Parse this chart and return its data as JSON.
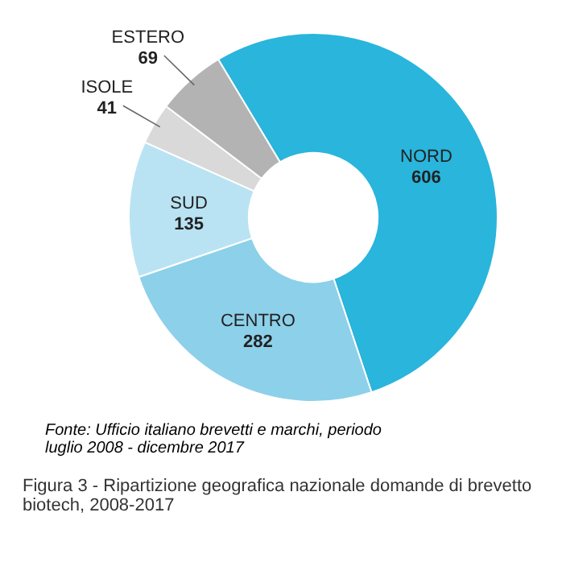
{
  "chart_data": {
    "type": "donut",
    "categories": [
      "NORD",
      "CENTRO",
      "SUD",
      "ISOLE",
      "ESTERO"
    ],
    "values": [
      606,
      282,
      135,
      41,
      69
    ],
    "colors": [
      "#29b5dc",
      "#8dd0ea",
      "#b9e3f3",
      "#d9d9d9",
      "#b3b3b3"
    ],
    "data_labels": true,
    "annotations": [
      "Fonte: Ufficio italiano brevetti e marchi, periodo luglio 2008 - dicembre 2017",
      "Figura 3 - Ripartizione geografica nazionale domande di brevetto biotech, 2008-2017"
    ]
  }
}
